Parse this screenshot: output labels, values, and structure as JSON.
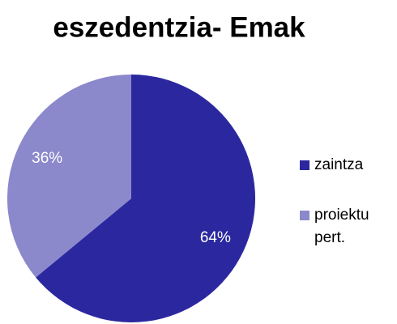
{
  "chart_data": {
    "type": "pie",
    "title": "eszedentzia- Emak",
    "categories": [
      "zaintza",
      "proiektu pert."
    ],
    "values": [
      64,
      36
    ],
    "value_labels": [
      "64%",
      "36%"
    ],
    "colors": [
      "#2b289f",
      "#8b89cb"
    ],
    "legend": "right"
  }
}
